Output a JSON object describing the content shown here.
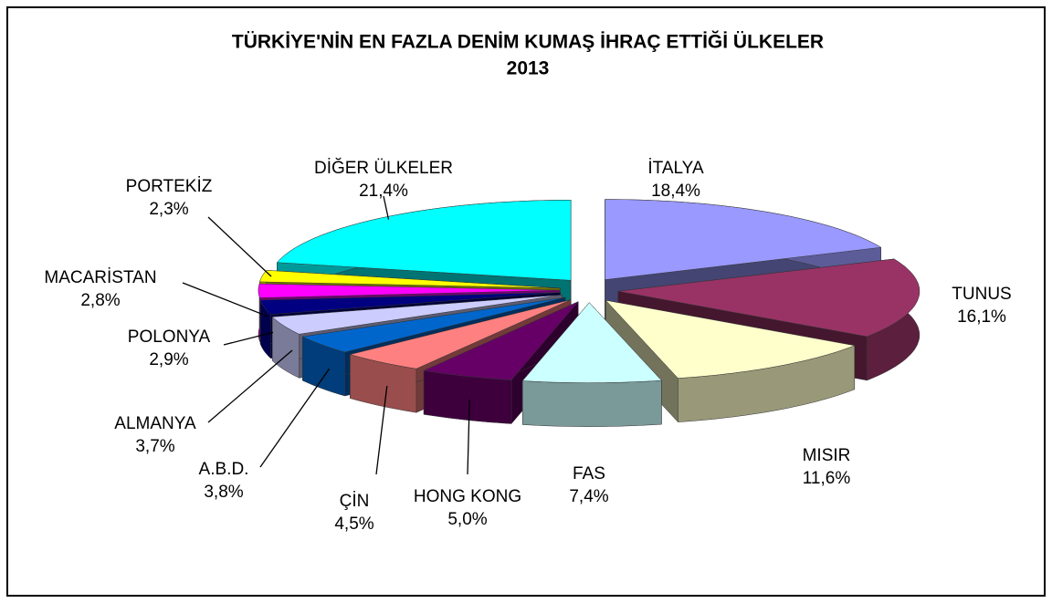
{
  "chart_data": {
    "type": "pie3d",
    "title": "TÜRKİYE'NİN EN FAZLA DENİM KUMAŞ İHRAÇ ETTİĞİ ÜLKELER",
    "subtitle": "2013",
    "categories": [
      "İTALYA",
      "TUNUS",
      "MISIR",
      "FAS",
      "HONG KONG",
      "ÇİN",
      "A.B.D.",
      "ALMANYA",
      "POLONYA",
      "MACARİSTAN",
      "PORTEKİZ",
      "DİĞER ÜLKELER"
    ],
    "values": [
      18.4,
      16.1,
      11.6,
      7.4,
      5.0,
      4.5,
      3.8,
      3.7,
      2.9,
      2.8,
      2.3,
      21.4
    ],
    "value_labels": [
      "18,4%",
      "16,1%",
      "11,6%",
      "7,4%",
      "5,0%",
      "4,5%",
      "3,8%",
      "3,7%",
      "2,9%",
      "2,8%",
      "2,3%",
      "21,4%"
    ],
    "colors": [
      "#9999ff",
      "#993366",
      "#ffffcc",
      "#ccffff",
      "#660066",
      "#ff8080",
      "#0066cc",
      "#ccccff",
      "#000080",
      "#ff00ff",
      "#ffff00",
      "#00ffff"
    ]
  }
}
